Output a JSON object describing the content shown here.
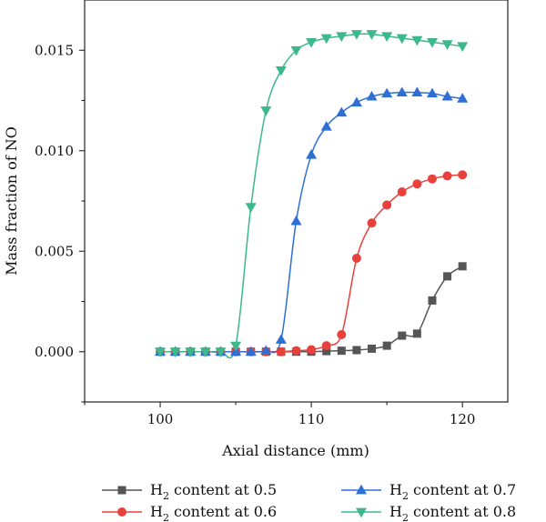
{
  "chart_data": {
    "type": "line",
    "xlabel": "Axial distance (mm)",
    "ylabel": "Mass fraction of NO",
    "xlim": [
      95,
      123
    ],
    "ylim": [
      -0.0025,
      0.0175
    ],
    "xticks": [
      100,
      110,
      120
    ],
    "yticks": [
      0.0,
      0.005,
      0.01,
      0.015
    ],
    "ytick_labels": [
      "0.000",
      "0.005",
      "0.010",
      "0.015"
    ],
    "legend_position": "bottom",
    "series": [
      {
        "name": "H2 content at 0.5",
        "name_base": "H",
        "name_sub": "2",
        "name_rest": " content at 0.5",
        "color": "#555555",
        "marker": "square",
        "x": [
          100,
          101,
          102,
          103,
          104,
          105,
          106,
          107,
          108,
          109,
          110,
          111,
          112,
          113,
          114,
          115,
          116,
          117,
          118,
          119,
          120
        ],
        "y": [
          0.0,
          0.0,
          0.0,
          0.0,
          0.0,
          0.0,
          0.0,
          0.0,
          0.0,
          0.0,
          0.0,
          3e-05,
          5e-05,
          8e-05,
          0.00015,
          0.0003,
          0.0008,
          0.0009,
          0.00255,
          0.00375,
          0.00425
        ]
      },
      {
        "name": "H2 content at 0.6",
        "name_base": "H",
        "name_sub": "2",
        "name_rest": " content at 0.6",
        "color": "#e8413c",
        "marker": "circle",
        "x": [
          100,
          101,
          102,
          103,
          104,
          105,
          106,
          107,
          108,
          109,
          110,
          111,
          112,
          113,
          114,
          115,
          116,
          117,
          118,
          119,
          120
        ],
        "y": [
          0.0,
          0.0,
          0.0,
          0.0,
          0.0,
          0.0,
          0.0,
          0.0,
          0.0,
          5e-05,
          0.0001,
          0.0003,
          0.00085,
          0.00465,
          0.0064,
          0.0073,
          0.00795,
          0.00835,
          0.0086,
          0.00875,
          0.0088
        ]
      },
      {
        "name": "H2 content at 0.7",
        "name_base": "H",
        "name_sub": "2",
        "name_rest": " content at 0.7",
        "color": "#2e6fd6",
        "marker": "triangle-up",
        "x": [
          100,
          101,
          102,
          103,
          104,
          105,
          106,
          107,
          108,
          109,
          110,
          111,
          112,
          113,
          114,
          115,
          116,
          117,
          118,
          119,
          120
        ],
        "y": [
          0.0,
          0.0,
          0.0,
          0.0,
          0.0,
          0.0,
          0.0,
          5e-05,
          0.0006,
          0.0065,
          0.0098,
          0.0112,
          0.0119,
          0.0124,
          0.0127,
          0.01285,
          0.0129,
          0.0129,
          0.01285,
          0.0127,
          0.0126
        ]
      },
      {
        "name": "H2 content at 0.8",
        "name_base": "H",
        "name_sub": "2",
        "name_rest": " content at 0.8",
        "color": "#3cb88a",
        "marker": "triangle-down",
        "x": [
          100,
          101,
          102,
          103,
          104,
          105,
          106,
          107,
          108,
          109,
          110,
          111,
          112,
          113,
          114,
          115,
          116,
          117,
          118,
          119,
          120
        ],
        "y": [
          0.0,
          0.0,
          0.0,
          0.0,
          0.0,
          0.0003,
          0.0072,
          0.012,
          0.014,
          0.015,
          0.0154,
          0.0156,
          0.0157,
          0.0158,
          0.0158,
          0.0157,
          0.0156,
          0.0155,
          0.0154,
          0.0153,
          0.0152
        ]
      }
    ]
  }
}
